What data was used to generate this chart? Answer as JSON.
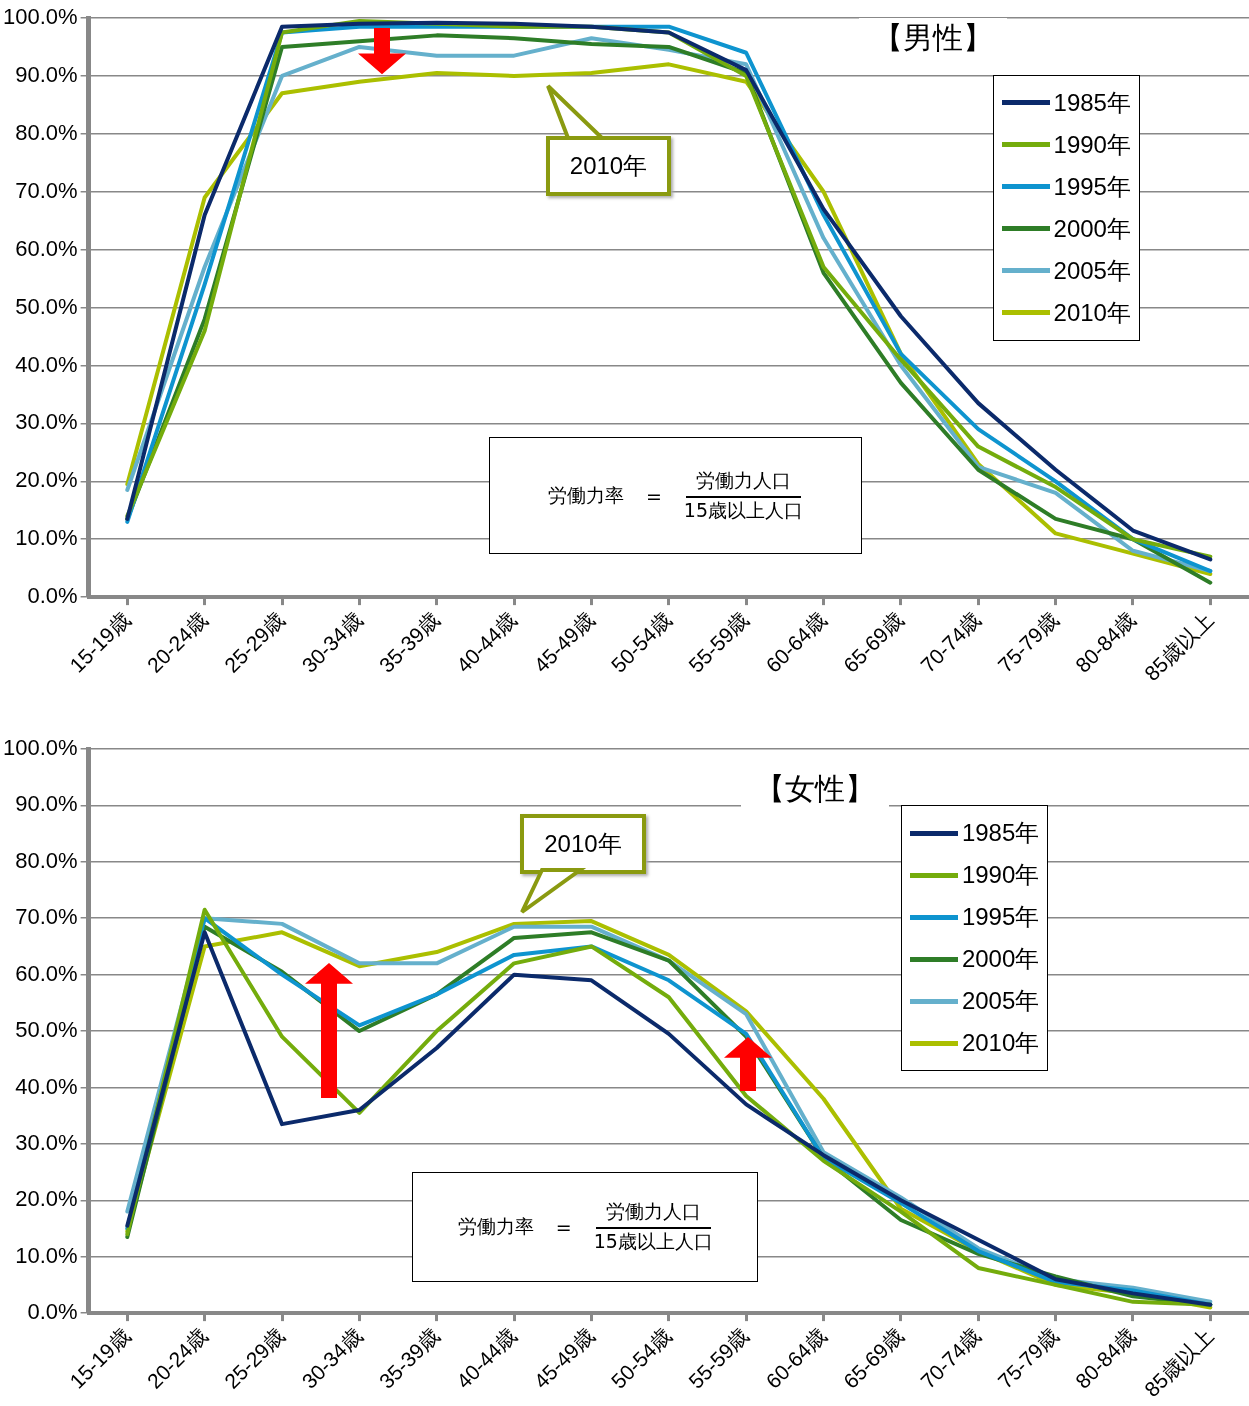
{
  "chart_data": [
    {
      "type": "line",
      "title": "【男性】",
      "categories": [
        "15-19歳",
        "20-24歳",
        "25-29歳",
        "30-34歳",
        "35-39歳",
        "40-44歳",
        "45-49歳",
        "50-54歳",
        "55-59歳",
        "60-64歳",
        "65-69歳",
        "70-74歳",
        "75-79歳",
        "80-84歳",
        "85歳以上"
      ],
      "series": [
        {
          "name": "1985年",
          "color": "#0b2a6b",
          "values": [
            13.5,
            66,
            98.5,
            99,
            99.2,
            99,
            98.5,
            97.5,
            91,
            67,
            48.5,
            33.5,
            22,
            11.5,
            6.5
          ]
        },
        {
          "name": "1990年",
          "color": "#74ac0c",
          "values": [
            14,
            46,
            97.5,
            99.5,
            99,
            98.5,
            98.5,
            97.5,
            90,
            57,
            41,
            26,
            19,
            10,
            7
          ]
        },
        {
          "name": "1995年",
          "color": "#0e94cf",
          "values": [
            13,
            54,
            97.5,
            98.5,
            98.5,
            98.5,
            98.5,
            98.5,
            94,
            66,
            42,
            29,
            20,
            10,
            4.5
          ]
        },
        {
          "name": "2000年",
          "color": "#2e7d27",
          "values": [
            13.5,
            48,
            95,
            96,
            97,
            96.5,
            95.5,
            95,
            90.5,
            56,
            37,
            22,
            13.5,
            10,
            2.5
          ]
        },
        {
          "name": "2005年",
          "color": "#65b0cc",
          "values": [
            18.5,
            57,
            90,
            95,
            93.5,
            93.5,
            96.5,
            94.5,
            92,
            62,
            40,
            22.5,
            18,
            8,
            4.5
          ]
        },
        {
          "name": "2010年",
          "color": "#abbf00",
          "values": [
            19.5,
            69,
            87,
            89,
            90.5,
            90,
            90.5,
            92,
            89,
            70,
            42,
            23,
            11,
            7.5,
            4
          ]
        }
      ],
      "ylim": [
        0,
        100
      ],
      "yticks": [
        {
          "value": 0,
          "label": "0.0%"
        },
        {
          "value": 10,
          "label": "10.0%"
        },
        {
          "value": 20,
          "label": "20.0%"
        },
        {
          "value": 30,
          "label": "30.0%"
        },
        {
          "value": 40,
          "label": "40.0%"
        },
        {
          "value": 50,
          "label": "50.0%"
        },
        {
          "value": 60,
          "label": "60.0%"
        },
        {
          "value": 70,
          "label": "70.0%"
        },
        {
          "value": 80,
          "label": "80.0%"
        },
        {
          "value": 90,
          "label": "90.0%"
        },
        {
          "value": 100,
          "label": "100.0%"
        }
      ],
      "grid": "y",
      "legend": "top right",
      "marker": "none",
      "line_style": "solid",
      "annotations": [
        "2010年",
        "労働力率",
        "=",
        "労働力人口",
        "15歳以上人口"
      ]
    },
    {
      "type": "line",
      "title": "【女性】",
      "categories": [
        "15-19歳",
        "20-24歳",
        "25-29歳",
        "30-34歳",
        "35-39歳",
        "40-44歳",
        "45-49歳",
        "50-54歳",
        "55-59歳",
        "60-64歳",
        "65-69歳",
        "70-74歳",
        "75-79歳",
        "80-84歳",
        "85歳以上"
      ],
      "series": [
        {
          "name": "1985年",
          "color": "#0b2a6b",
          "values": [
            15.5,
            67.5,
            33.5,
            36,
            47,
            60,
            59,
            49.5,
            37,
            28,
            20,
            13,
            6,
            3.5,
            1.5
          ]
        },
        {
          "name": "1990年",
          "color": "#74ac0c",
          "values": [
            14,
            71.5,
            49,
            35.5,
            50,
            62,
            65,
            56,
            38.5,
            27,
            18,
            8,
            5,
            2,
            1.5
          ]
        },
        {
          "name": "1995年",
          "color": "#0e94cf",
          "values": [
            15,
            70,
            60,
            51,
            56.5,
            63.5,
            65,
            59,
            49.5,
            27.5,
            19.5,
            11,
            5.5,
            4,
            1.5
          ]
        },
        {
          "name": "2000年",
          "color": "#2e7d27",
          "values": [
            13.5,
            68.5,
            60.5,
            50,
            56.5,
            66.5,
            67.5,
            62.5,
            49,
            27.5,
            16.5,
            10.5,
            6.5,
            3,
            1.5
          ]
        },
        {
          "name": "2005年",
          "color": "#65b0cc",
          "values": [
            18,
            70,
            69,
            62,
            62,
            68.5,
            68.5,
            62.5,
            53,
            28.5,
            20.5,
            11.5,
            6,
            4.5,
            2
          ]
        },
        {
          "name": "2010年",
          "color": "#abbf00",
          "values": [
            14.5,
            65,
            67.5,
            61.5,
            64,
            69,
            69.5,
            63.5,
            53.5,
            38,
            18.5,
            11,
            5,
            3.5,
            1
          ]
        }
      ],
      "ylim": [
        0,
        100
      ],
      "yticks": [
        {
          "value": 0,
          "label": "0.0%"
        },
        {
          "value": 10,
          "label": "10.0%"
        },
        {
          "value": 20,
          "label": "20.0%"
        },
        {
          "value": 30,
          "label": "30.0%"
        },
        {
          "value": 40,
          "label": "40.0%"
        },
        {
          "value": 50,
          "label": "50.0%"
        },
        {
          "value": 60,
          "label": "60.0%"
        },
        {
          "value": 70,
          "label": "70.0%"
        },
        {
          "value": 80,
          "label": "80.0%"
        },
        {
          "value": 90,
          "label": "90.0%"
        },
        {
          "value": 100,
          "label": "100.0%"
        }
      ],
      "grid": "y",
      "legend": "top right",
      "marker": "none",
      "line_style": "solid",
      "annotations": [
        "2010年",
        "労働力率",
        "=",
        "労働力人口",
        "15歳以上人口"
      ]
    }
  ]
}
